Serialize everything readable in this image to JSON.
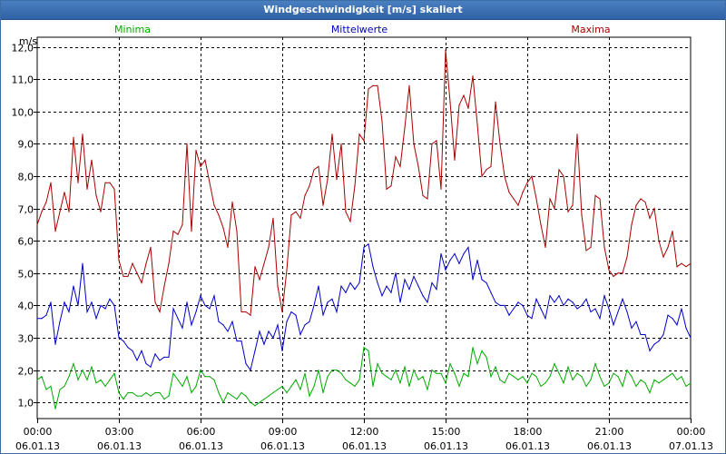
{
  "window": {
    "title": "Windgeschwindigkeit [m/s] skaliert"
  },
  "chart_data": {
    "type": "line",
    "title": "Windgeschwindigkeit [m/s] skaliert",
    "ylabel": "m/s",
    "ylim": [
      0.5,
      12.3
    ],
    "xlim": [
      0,
      144
    ],
    "grid": true,
    "legend": "top",
    "yticks": [
      {
        "v": 1,
        "label": "1,0"
      },
      {
        "v": 2,
        "label": "2,0"
      },
      {
        "v": 3,
        "label": "3,0"
      },
      {
        "v": 4,
        "label": "4,0"
      },
      {
        "v": 5,
        "label": "5,0"
      },
      {
        "v": 6,
        "label": "6,0"
      },
      {
        "v": 7,
        "label": "7,0"
      },
      {
        "v": 8,
        "label": "8,0"
      },
      {
        "v": 9,
        "label": "9,0"
      },
      {
        "v": 10,
        "label": "10,0"
      },
      {
        "v": 11,
        "label": "11,0"
      },
      {
        "v": 12,
        "label": "12,0"
      }
    ],
    "xticks": [
      {
        "v": 0,
        "time": "00:00",
        "date": "06.01.13"
      },
      {
        "v": 18,
        "time": "03:00",
        "date": "06.01.13"
      },
      {
        "v": 36,
        "time": "06:00",
        "date": "06.01.13"
      },
      {
        "v": 54,
        "time": "09:00",
        "date": "06.01.13"
      },
      {
        "v": 72,
        "time": "12:00",
        "date": "06.01.13"
      },
      {
        "v": 90,
        "time": "15:00",
        "date": "06.01.13"
      },
      {
        "v": 108,
        "time": "18:00",
        "date": "06.01.13"
      },
      {
        "v": 126,
        "time": "21:00",
        "date": "06.01.13"
      },
      {
        "v": 144,
        "time": "00:00",
        "date": "07.01.13"
      }
    ],
    "series": [
      {
        "name": "Minima",
        "color": "#00aa00",
        "values": [
          1.7,
          1.8,
          1.4,
          1.5,
          0.8,
          1.4,
          1.5,
          1.8,
          2.2,
          1.7,
          2.0,
          1.7,
          2.1,
          1.6,
          1.7,
          1.5,
          1.7,
          1.9,
          1.3,
          1.1,
          1.3,
          1.3,
          1.2,
          1.2,
          1.3,
          1.2,
          1.3,
          1.3,
          1.1,
          1.2,
          1.9,
          1.7,
          1.5,
          1.8,
          1.3,
          1.5,
          2.0,
          1.8,
          1.8,
          1.7,
          1.3,
          1.0,
          1.3,
          1.2,
          1.1,
          1.3,
          1.2,
          1.0,
          0.9,
          1.0,
          1.1,
          1.2,
          1.3,
          1.4,
          1.5,
          1.3,
          1.5,
          1.7,
          1.4,
          1.9,
          1.2,
          1.5,
          2.0,
          1.3,
          1.8,
          2.0,
          2.0,
          1.9,
          1.7,
          1.6,
          1.5,
          1.7,
          2.7,
          2.6,
          1.5,
          2.2,
          1.9,
          1.8,
          1.7,
          2.0,
          1.6,
          2.1,
          1.5,
          2.0,
          1.7,
          1.8,
          1.4,
          2.0,
          1.9,
          1.9,
          1.6,
          2.2,
          1.9,
          1.5,
          1.9,
          1.8,
          2.7,
          2.2,
          2.6,
          2.4,
          1.8,
          2.1,
          1.7,
          1.6,
          1.9,
          1.8,
          1.7,
          1.8,
          1.6,
          1.9,
          1.8,
          1.5,
          1.6,
          1.8,
          2.2,
          1.9,
          1.6,
          2.1,
          1.7,
          1.9,
          1.8,
          1.5,
          1.7,
          2.2,
          1.8,
          1.5,
          1.6,
          1.9,
          1.8,
          1.5,
          2.0,
          1.8,
          1.5,
          1.7,
          1.6,
          1.3,
          1.7,
          1.6,
          1.7,
          1.8,
          1.9,
          1.7,
          1.8,
          1.5,
          1.6
        ]
      },
      {
        "name": "Mittelwerte",
        "color": "#0000c8",
        "values": [
          3.6,
          3.6,
          3.7,
          4.1,
          2.8,
          3.5,
          4.1,
          3.8,
          4.6,
          4.0,
          5.3,
          3.8,
          4.1,
          3.6,
          4.0,
          3.9,
          4.2,
          4.0,
          3.0,
          2.9,
          2.7,
          2.6,
          2.3,
          2.6,
          2.2,
          2.1,
          2.5,
          2.3,
          2.4,
          2.4,
          3.9,
          3.6,
          3.3,
          4.1,
          3.4,
          3.8,
          4.3,
          4.0,
          3.9,
          4.3,
          3.5,
          3.4,
          3.2,
          3.5,
          2.9,
          2.9,
          2.2,
          2.0,
          2.6,
          3.2,
          2.8,
          3.2,
          3.0,
          3.4,
          2.6,
          3.5,
          3.8,
          3.7,
          3.1,
          3.4,
          3.5,
          4.0,
          4.6,
          3.7,
          4.1,
          4.2,
          3.8,
          4.6,
          4.4,
          4.7,
          4.5,
          4.7,
          5.8,
          5.9,
          5.2,
          4.7,
          4.3,
          4.6,
          4.4,
          5.0,
          4.1,
          4.8,
          4.5,
          4.9,
          4.6,
          4.3,
          4.1,
          4.7,
          4.5,
          5.6,
          5.1,
          5.4,
          5.6,
          5.3,
          5.6,
          5.8,
          4.8,
          5.4,
          4.8,
          4.7,
          4.4,
          4.1,
          4.0,
          4.0,
          3.7,
          3.9,
          4.1,
          4.0,
          3.7,
          3.6,
          4.2,
          3.9,
          3.6,
          4.3,
          4.1,
          4.3,
          4.0,
          4.2,
          4.1,
          3.9,
          4.0,
          4.2,
          3.8,
          3.9,
          3.6,
          4.3,
          3.9,
          3.4,
          3.8,
          4.2,
          3.8,
          3.3,
          3.5,
          3.1,
          3.1,
          2.6,
          2.8,
          2.9,
          3.1,
          3.7,
          3.6,
          3.4,
          3.9,
          3.3,
          3.0
        ]
      },
      {
        "name": "Maxima",
        "color": "#aa0000",
        "values": [
          6.5,
          6.9,
          7.2,
          7.8,
          6.3,
          6.9,
          7.5,
          6.9,
          9.2,
          7.8,
          9.3,
          7.6,
          8.5,
          7.4,
          6.9,
          7.8,
          7.8,
          7.6,
          5.4,
          4.9,
          4.9,
          5.3,
          5.0,
          4.7,
          5.3,
          5.8,
          4.1,
          3.8,
          4.6,
          5.3,
          6.3,
          6.2,
          6.5,
          9.0,
          6.3,
          8.8,
          8.3,
          8.5,
          7.8,
          7.1,
          6.8,
          6.4,
          5.8,
          7.2,
          6.3,
          3.8,
          3.8,
          3.7,
          5.2,
          4.8,
          5.3,
          5.8,
          6.7,
          4.6,
          3.8,
          5.1,
          6.8,
          6.9,
          6.7,
          7.4,
          7.7,
          8.2,
          8.3,
          7.1,
          7.9,
          9.3,
          7.9,
          9.0,
          6.9,
          6.6,
          7.7,
          9.3,
          9.1,
          10.7,
          10.8,
          10.8,
          9.7,
          7.6,
          7.7,
          8.6,
          8.3,
          9.5,
          10.8,
          9.0,
          8.3,
          7.4,
          7.3,
          9.0,
          9.1,
          7.6,
          11.9,
          10.3,
          8.5,
          10.2,
          10.5,
          10.1,
          11.1,
          9.6,
          8.0,
          8.2,
          8.3,
          10.3,
          9.0,
          8.0,
          7.5,
          7.3,
          7.1,
          7.5,
          7.8,
          8.0,
          7.3,
          6.5,
          5.8,
          7.3,
          7.0,
          8.2,
          8.0,
          6.9,
          7.1,
          9.3,
          6.8,
          5.7,
          5.8,
          7.4,
          7.3,
          5.8,
          5.1,
          4.9,
          5.0,
          5.0,
          5.5,
          6.5,
          7.1,
          7.3,
          7.2,
          6.7,
          7.0,
          6.0,
          5.5,
          5.8,
          6.3,
          5.2,
          5.3,
          5.2,
          5.3
        ]
      }
    ]
  }
}
